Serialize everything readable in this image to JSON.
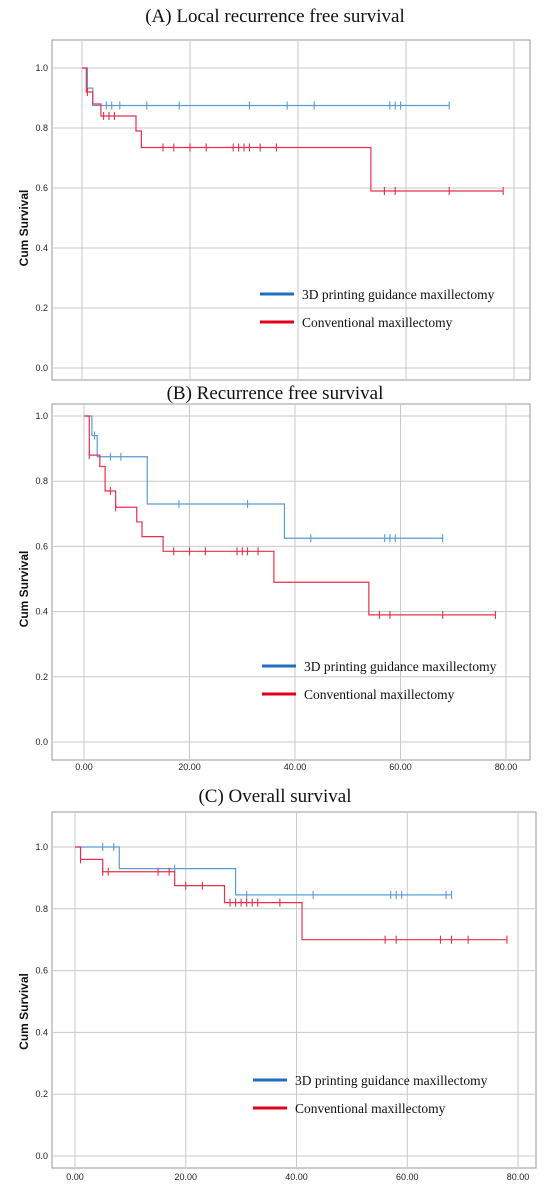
{
  "chart_data": [
    {
      "type": "line",
      "title": "(A) Local recurrence free survival",
      "xlabel": "",
      "ylabel": "Cum Survival",
      "xlim": [
        0,
        80
      ],
      "ylim": [
        0,
        1
      ],
      "yticks": [
        "0.0",
        "0.2",
        "0.4",
        "0.6",
        "0.8",
        "1.0"
      ],
      "xticks": [],
      "grid": true,
      "legend_position": "bottom-right",
      "colors": {
        "blue": "#5b9bd5",
        "red": "#e8304a",
        "legend_blue": "#1f6fc0",
        "legend_red": "#e0001b"
      },
      "series": [
        {
          "name": "3D printing guidance maxillectomy",
          "steps": [
            [
              0,
              1.0
            ],
            [
              1,
              0.933
            ],
            [
              2,
              0.875
            ],
            [
              68,
              0.875
            ]
          ],
          "censored": [
            1,
            4.5,
            5.5,
            7,
            12,
            18,
            31,
            38,
            43,
            57,
            58,
            59,
            68
          ]
        },
        {
          "name": "Conventional maxillectomy",
          "steps": [
            [
              0,
              1.0
            ],
            [
              0.8,
              0.92
            ],
            [
              2,
              0.88
            ],
            [
              3.5,
              0.84
            ],
            [
              10,
              0.79
            ],
            [
              11,
              0.735
            ],
            [
              53.5,
              0.59
            ],
            [
              78,
              0.59
            ]
          ],
          "censored": [
            1,
            4,
            5,
            6,
            15,
            17,
            20,
            23,
            28,
            29,
            30,
            31,
            33,
            36,
            56,
            58,
            68,
            78
          ]
        }
      ]
    },
    {
      "type": "line",
      "title": "(B) Recurrence free survival",
      "xlabel": "",
      "ylabel": "Cum Survival",
      "xlim": [
        0,
        80
      ],
      "ylim": [
        0,
        1
      ],
      "yticks": [
        "0.0",
        "0.2",
        "0.4",
        "0.6",
        "0.8",
        "1.0"
      ],
      "xticks": [
        "0.00",
        "20.00",
        "40.00",
        "60.00",
        "80.00"
      ],
      "grid": true,
      "legend_position": "bottom-right",
      "colors": {
        "blue": "#5b9bd5",
        "red": "#e8304a",
        "legend_blue": "#1f6fc0",
        "legend_red": "#e0001b"
      },
      "series": [
        {
          "name": "3D printing guidance maxillectomy",
          "steps": [
            [
              0,
              1.0
            ],
            [
              1.5,
              0.94
            ],
            [
              2.5,
              0.875
            ],
            [
              12,
              0.73
            ],
            [
              38,
              0.625
            ],
            [
              68,
              0.625
            ]
          ],
          "censored": [
            2,
            5,
            7,
            18,
            31,
            43,
            57,
            58,
            59,
            68
          ]
        },
        {
          "name": "Conventional maxillectomy",
          "steps": [
            [
              0,
              1.0
            ],
            [
              1,
              0.88
            ],
            [
              3,
              0.845
            ],
            [
              4,
              0.77
            ],
            [
              6,
              0.72
            ],
            [
              10,
              0.675
            ],
            [
              11,
              0.63
            ],
            [
              15,
              0.585
            ],
            [
              36,
              0.49
            ],
            [
              54,
              0.39
            ],
            [
              78,
              0.39
            ]
          ],
          "censored": [
            1,
            5,
            6,
            17,
            20,
            23,
            29,
            30,
            31,
            33,
            56,
            58,
            68,
            78
          ]
        }
      ]
    },
    {
      "type": "line",
      "title": "(C) Overall survival",
      "xlabel": "",
      "ylabel": "Cum Survival",
      "xlim": [
        0,
        80
      ],
      "ylim": [
        0,
        1
      ],
      "yticks": [
        "0.0",
        "0.2",
        "0.4",
        "0.6",
        "0.8",
        "1.0"
      ],
      "xticks": [
        "0.00",
        "20.00",
        "40.00",
        "60.00",
        "80.00"
      ],
      "grid": true,
      "legend_position": "bottom-right",
      "colors": {
        "blue": "#5b9bd5",
        "red": "#e8304a",
        "legend_blue": "#1f6fc0",
        "legend_red": "#e0001b"
      },
      "series": [
        {
          "name": "3D printing guidance maxillectomy",
          "steps": [
            [
              0,
              1.0
            ],
            [
              8,
              0.93
            ],
            [
              29,
              0.845
            ],
            [
              68,
              0.845
            ]
          ],
          "censored": [
            5,
            7,
            18,
            31,
            43,
            57,
            58,
            59,
            67,
            68
          ]
        },
        {
          "name": "Conventional maxillectomy",
          "steps": [
            [
              0,
              1.0
            ],
            [
              1,
              0.96
            ],
            [
              5,
              0.92
            ],
            [
              18,
              0.875
            ],
            [
              27,
              0.82
            ],
            [
              41,
              0.7
            ],
            [
              78,
              0.7
            ]
          ],
          "censored": [
            1,
            5,
            6,
            15,
            17,
            20,
            23,
            28,
            29,
            30,
            31,
            32,
            33,
            37,
            56,
            58,
            66,
            68,
            71,
            78
          ]
        }
      ]
    }
  ]
}
